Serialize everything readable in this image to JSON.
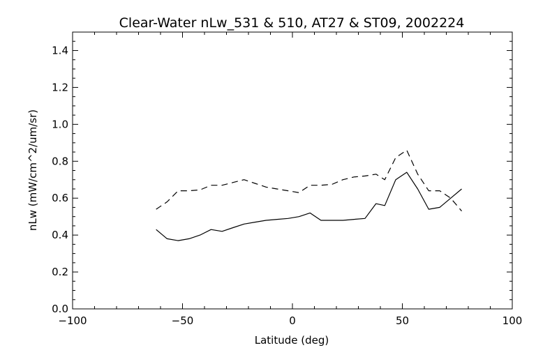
{
  "chart_data": {
    "type": "line",
    "title": "Clear-Water nLw_531 & 510, AT27 & ST09, 2002224",
    "xlabel": "Latitude (deg)",
    "ylabel": "nLw (mW/cm^2/um/sr)",
    "xlim": [
      -100,
      100
    ],
    "ylim": [
      0.0,
      1.5
    ],
    "xticks": [
      -100,
      -50,
      0,
      50,
      100
    ],
    "xtick_labels": [
      "−100",
      "−50",
      "0",
      "50",
      "100"
    ],
    "yticks": [
      0.0,
      0.2,
      0.4,
      0.6,
      0.8,
      1.0,
      1.2,
      1.4
    ],
    "ytick_labels": [
      "0.0",
      "0.2",
      "0.4",
      "0.6",
      "0.8",
      "1.0",
      "1.2",
      "1.4"
    ],
    "grid": false,
    "series": [
      {
        "style": "solid",
        "color": "#000000",
        "x": [
          -62,
          -57,
          -52,
          -47,
          -42,
          -37,
          -32,
          -27,
          -22,
          -17,
          -12,
          -7,
          -2,
          3,
          8,
          13,
          18,
          23,
          28,
          33,
          38,
          42,
          47,
          52,
          57,
          62,
          67,
          72,
          77
        ],
        "y": [
          0.43,
          0.38,
          0.37,
          0.38,
          0.4,
          0.43,
          0.42,
          0.44,
          0.46,
          0.47,
          0.48,
          0.485,
          0.49,
          0.5,
          0.52,
          0.48,
          0.48,
          0.48,
          0.485,
          0.49,
          0.57,
          0.56,
          0.7,
          0.74,
          0.65,
          0.54,
          0.55,
          0.6,
          0.65
        ]
      },
      {
        "style": "dashed",
        "color": "#000000",
        "x": [
          -62,
          -57,
          -52,
          -47,
          -42,
          -37,
          -32,
          -27,
          -22,
          -17,
          -12,
          -7,
          -2,
          3,
          8,
          13,
          18,
          23,
          28,
          33,
          38,
          42,
          47,
          52,
          57,
          62,
          67,
          72,
          77
        ],
        "y": [
          0.54,
          0.58,
          0.64,
          0.64,
          0.645,
          0.67,
          0.67,
          0.685,
          0.7,
          0.68,
          0.66,
          0.65,
          0.64,
          0.63,
          0.67,
          0.67,
          0.675,
          0.7,
          0.715,
          0.72,
          0.73,
          0.7,
          0.82,
          0.86,
          0.73,
          0.64,
          0.64,
          0.6,
          0.53
        ]
      }
    ]
  }
}
